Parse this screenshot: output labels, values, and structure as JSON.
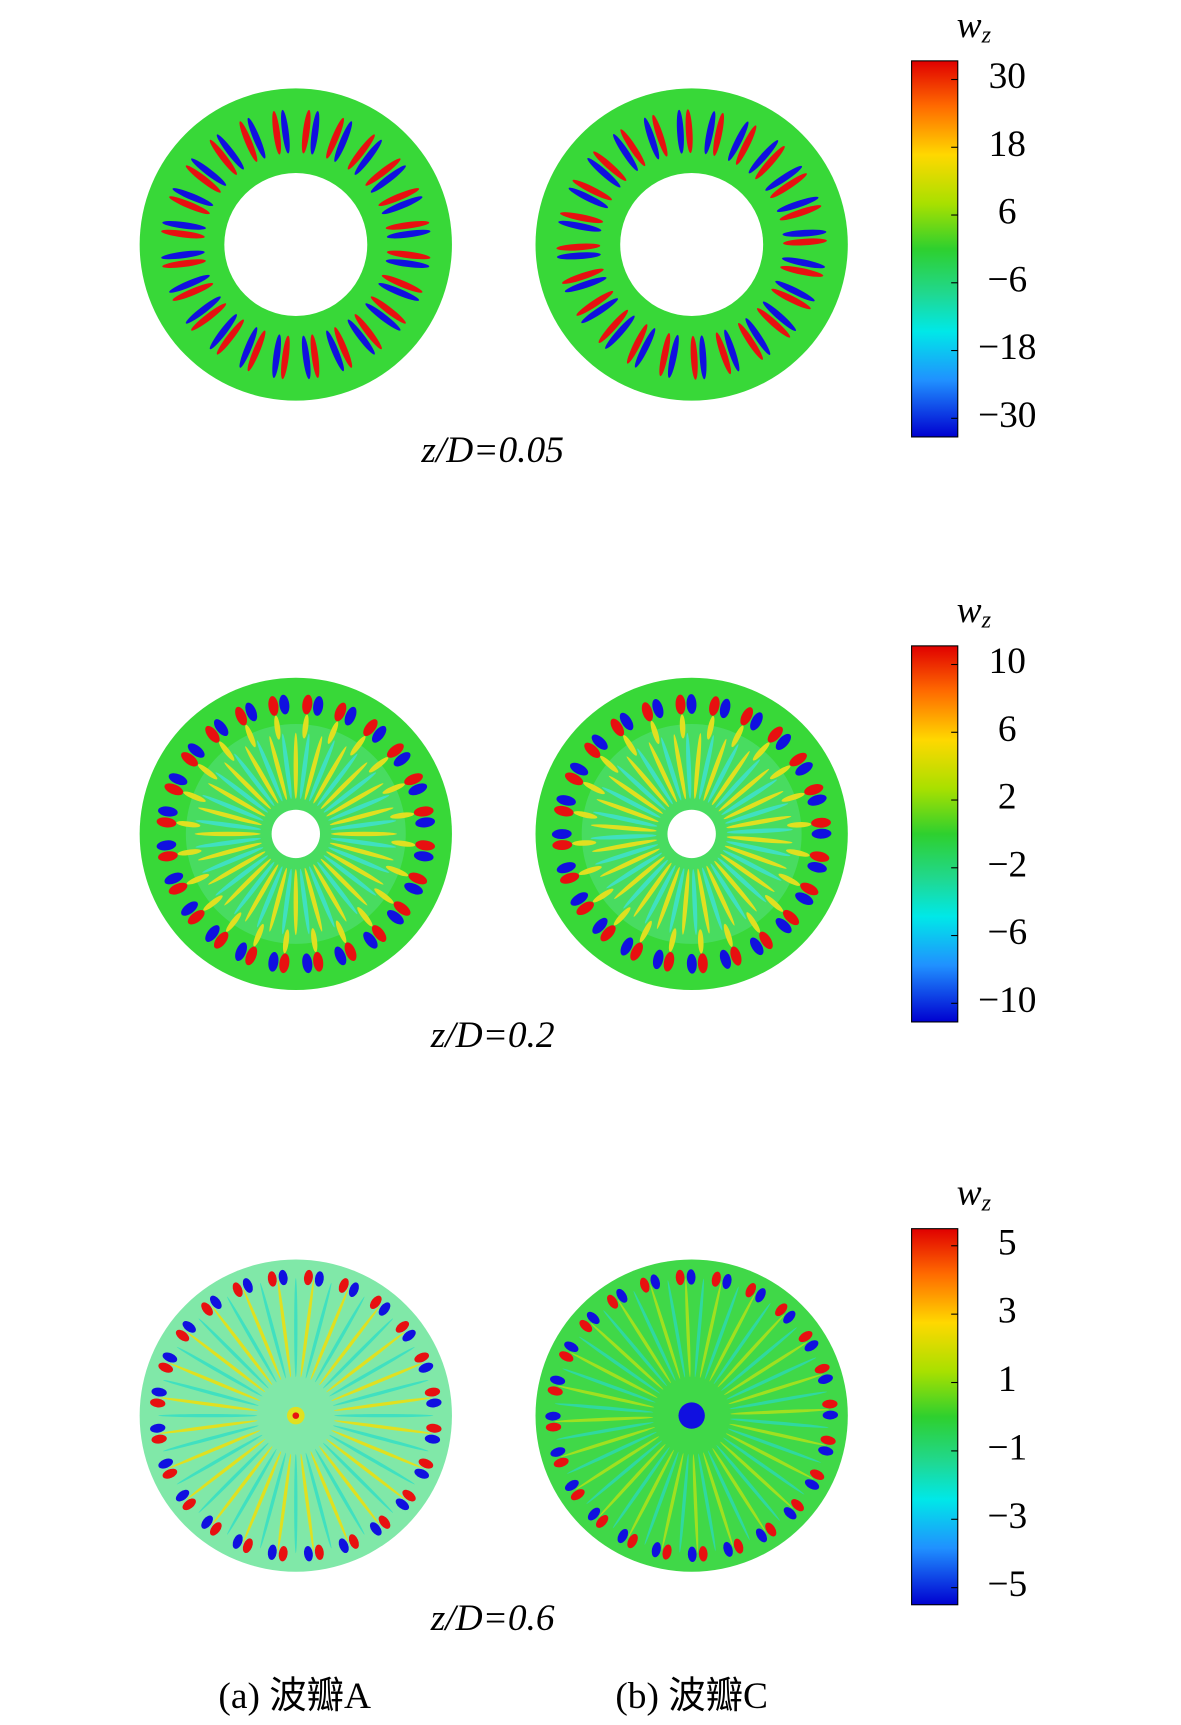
{
  "rows": [
    {
      "caption": "z/D=0.05",
      "colorbar": {
        "symbol": "w",
        "subscript": "z",
        "lim": [
          -33.3,
          33.3
        ],
        "ticks": [
          30,
          18,
          6,
          {
            "value": -6,
            "label": "−6"
          },
          {
            "value": -18,
            "label": "−18"
          },
          {
            "value": -30,
            "label": "−30"
          }
        ]
      }
    },
    {
      "caption": "z/D=0.2",
      "colorbar": {
        "symbol": "w",
        "subscript": "z",
        "lim": [
          -11.1,
          11.1
        ],
        "ticks": [
          10,
          6,
          2,
          {
            "value": -2,
            "label": "−2"
          },
          {
            "value": -6,
            "label": "−6"
          },
          {
            "value": -10,
            "label": "−10"
          }
        ]
      }
    },
    {
      "caption": "z/D=0.6",
      "colorbar": {
        "symbol": "w",
        "subscript": "z",
        "lim": [
          -5.5,
          5.5
        ],
        "ticks": [
          5,
          3,
          1,
          {
            "value": -1,
            "label": "−1"
          },
          {
            "value": -3,
            "label": "−3"
          },
          {
            "value": -5,
            "label": "−5"
          }
        ]
      }
    }
  ],
  "panels": [
    "(a) 波瓣A",
    "(b) 波瓣C"
  ]
}
